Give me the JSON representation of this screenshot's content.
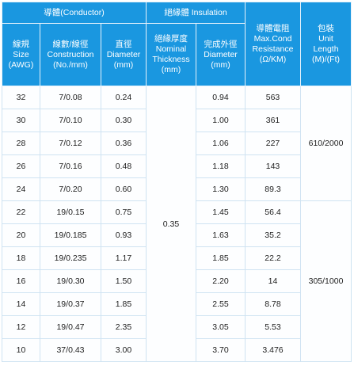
{
  "header": {
    "conductor": "導體(Conductor)",
    "insulation": "絕緣體 Insulation",
    "gauge": [
      "線規",
      "Size",
      "(AWG)"
    ],
    "construction": [
      "線數/線徑",
      "Construction",
      "(No./mm)"
    ],
    "diameter": [
      "直徑",
      "Diameter",
      "(mm)"
    ],
    "thickness": [
      "絕緣厚度",
      "Nominal",
      "Thickness",
      "(mm)"
    ],
    "outer_diameter": [
      "完成外徑",
      "Diameter",
      "(mm)"
    ],
    "resistance": [
      "導體電阻",
      "Max.Cond",
      "Resistance",
      "(Ω/KM)"
    ],
    "unit_length": [
      "包裝",
      "Unit",
      "Length",
      "(M)/(Ft)"
    ]
  },
  "rows": [
    {
      "awg": "32",
      "construction": "7/0.08",
      "diameter": "0.24",
      "od": "0.94",
      "resistance": "563"
    },
    {
      "awg": "30",
      "construction": "7/0.10",
      "diameter": "0.30",
      "od": "1.00",
      "resistance": "361"
    },
    {
      "awg": "28",
      "construction": "7/0.12",
      "diameter": "0.36",
      "od": "1.06",
      "resistance": "227"
    },
    {
      "awg": "26",
      "construction": "7/0.16",
      "diameter": "0.48",
      "od": "1.18",
      "resistance": "143"
    },
    {
      "awg": "24",
      "construction": "7/0.20",
      "diameter": "0.60",
      "od": "1.30",
      "resistance": "89.3"
    },
    {
      "awg": "22",
      "construction": "19/0.15",
      "diameter": "0.75",
      "od": "1.45",
      "resistance": "56.4"
    },
    {
      "awg": "20",
      "construction": "19/0.185",
      "diameter": "0.93",
      "od": "1.63",
      "resistance": "35.2"
    },
    {
      "awg": "18",
      "construction": "19/0.235",
      "diameter": "1.17",
      "od": "1.85",
      "resistance": "22.2"
    },
    {
      "awg": "16",
      "construction": "19/0.30",
      "diameter": "1.50",
      "od": "2.20",
      "resistance": "14"
    },
    {
      "awg": "14",
      "construction": "19/0.37",
      "diameter": "1.85",
      "od": "2.55",
      "resistance": "8.78"
    },
    {
      "awg": "12",
      "construction": "19/0.47",
      "diameter": "2.35",
      "od": "3.05",
      "resistance": "5.53"
    },
    {
      "awg": "10",
      "construction": "37/0.43",
      "diameter": "3.00",
      "od": "3.70",
      "resistance": "3.476"
    }
  ],
  "thickness_value": "0.35",
  "unit_length_groups": [
    "610/2000",
    "305/1000"
  ],
  "colors": {
    "header_bg": "#1a97e0",
    "header_text": "#ffffff",
    "border": "#cfe3f2"
  }
}
